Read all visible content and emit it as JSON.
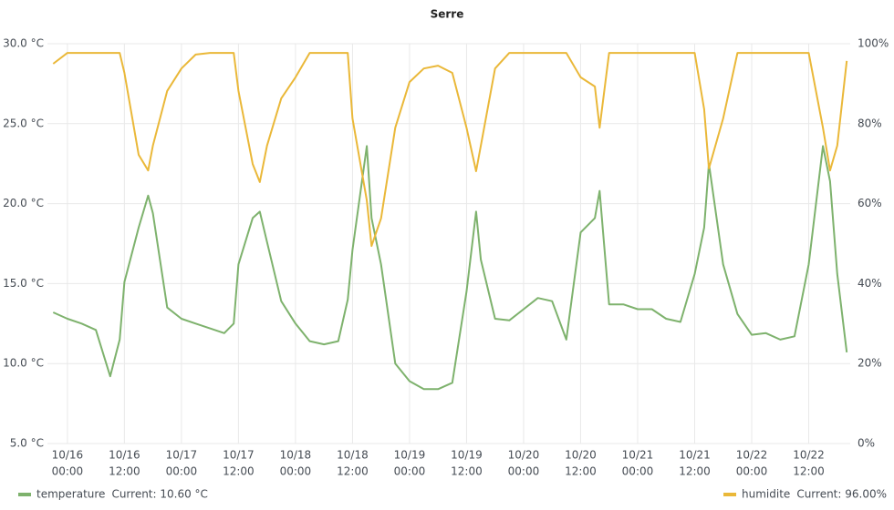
{
  "chart_data": {
    "type": "line",
    "title": "Serre",
    "x": [
      "10/15 21:00",
      "10/16 00:00",
      "10/16 03:00",
      "10/16 06:00",
      "10/16 09:00",
      "10/16 11:00",
      "10/16 12:00",
      "10/16 15:00",
      "10/16 17:00",
      "10/16 18:00",
      "10/16 21:00",
      "10/17 00:00",
      "10/17 03:00",
      "10/17 06:00",
      "10/17 09:00",
      "10/17 11:00",
      "10/17 12:00",
      "10/17 15:00",
      "10/17 16:30",
      "10/17 18:00",
      "10/17 21:00",
      "10/18 00:00",
      "10/18 03:00",
      "10/18 06:00",
      "10/18 09:00",
      "10/18 11:00",
      "10/18 12:00",
      "10/18 15:00",
      "10/18 16:00",
      "10/18 18:00",
      "10/18 21:00",
      "10/19 00:00",
      "10/19 03:00",
      "10/19 06:00",
      "10/19 09:00",
      "10/19 12:00",
      "10/19 14:00",
      "10/19 15:00",
      "10/19 18:00",
      "10/19 21:00",
      "10/20 00:00",
      "10/20 03:00",
      "10/20 06:00",
      "10/20 09:00",
      "10/20 12:00",
      "10/20 15:00",
      "10/20 16:00",
      "10/20 18:00",
      "10/20 21:00",
      "10/21 00:00",
      "10/21 03:00",
      "10/21 06:00",
      "10/21 09:00",
      "10/21 12:00",
      "10/21 14:00",
      "10/21 15:00",
      "10/21 18:00",
      "10/21 21:00",
      "10/22 00:00",
      "10/22 03:00",
      "10/22 06:00",
      "10/22 09:00",
      "10/22 12:00",
      "10/22 15:00",
      "10/22 16:30",
      "10/22 18:00",
      "10/22 20:00"
    ],
    "series": [
      {
        "name": "temperature",
        "legend_label": "Current: 10.60 °C",
        "color": "#7eb26d",
        "axis": "y",
        "values": [
          13.2,
          12.8,
          12.5,
          12.1,
          9.2,
          11.5,
          15.1,
          18.5,
          20.5,
          19.4,
          13.5,
          12.8,
          12.5,
          12.2,
          11.9,
          12.5,
          16.2,
          19.1,
          19.5,
          17.6,
          13.9,
          12.5,
          11.4,
          11.2,
          11.4,
          14.0,
          17.1,
          23.6,
          19.1,
          16.2,
          10.0,
          8.9,
          8.4,
          8.4,
          8.8,
          14.5,
          19.5,
          16.5,
          12.8,
          12.7,
          13.4,
          14.1,
          13.9,
          11.5,
          18.2,
          19.1,
          20.8,
          13.7,
          13.7,
          13.4,
          13.4,
          12.8,
          12.6,
          15.6,
          18.5,
          22.5,
          16.2,
          13.1,
          11.8,
          11.9,
          11.5,
          11.7,
          16.2,
          23.6,
          21.4,
          15.6,
          10.7
        ]
      },
      {
        "name": "humidite",
        "legend_label": "Current: 96.00%",
        "color": "#eab839",
        "axis": "y2",
        "values": [
          95,
          97.7,
          97.7,
          97.7,
          97.7,
          97.7,
          92.7,
          72.2,
          68.3,
          74.5,
          88.2,
          93.8,
          97.3,
          97.7,
          97.7,
          97.7,
          88.2,
          69.9,
          65.4,
          74.5,
          86.3,
          91.6,
          97.7,
          97.7,
          97.7,
          97.7,
          81.3,
          60.8,
          49.4,
          56.3,
          79.0,
          90.4,
          93.8,
          94.5,
          92.7,
          79.0,
          68.1,
          74.5,
          93.8,
          97.7,
          97.7,
          97.7,
          97.7,
          97.7,
          91.6,
          89.3,
          79.0,
          97.7,
          97.7,
          97.7,
          97.7,
          97.7,
          97.7,
          97.7,
          83.6,
          68.8,
          81.3,
          97.7,
          97.7,
          97.7,
          97.7,
          97.7,
          97.7,
          79.0,
          68.3,
          74.5,
          95.7
        ]
      }
    ],
    "xlim": [
      "10/15 19:48",
      "10/22 20:44"
    ],
    "xticks": [
      {
        "value": "10/16 00:00",
        "label": [
          "10/16",
          "00:00"
        ]
      },
      {
        "value": "10/16 12:00",
        "label": [
          "10/16",
          "12:00"
        ]
      },
      {
        "value": "10/17 00:00",
        "label": [
          "10/17",
          "00:00"
        ]
      },
      {
        "value": "10/17 12:00",
        "label": [
          "10/17",
          "12:00"
        ]
      },
      {
        "value": "10/18 00:00",
        "label": [
          "10/18",
          "00:00"
        ]
      },
      {
        "value": "10/18 12:00",
        "label": [
          "10/18",
          "12:00"
        ]
      },
      {
        "value": "10/19 00:00",
        "label": [
          "10/19",
          "00:00"
        ]
      },
      {
        "value": "10/19 12:00",
        "label": [
          "10/19",
          "12:00"
        ]
      },
      {
        "value": "10/20 00:00",
        "label": [
          "10/20",
          "00:00"
        ]
      },
      {
        "value": "10/20 12:00",
        "label": [
          "10/20",
          "12:00"
        ]
      },
      {
        "value": "10/21 00:00",
        "label": [
          "10/21",
          "00:00"
        ]
      },
      {
        "value": "10/21 12:00",
        "label": [
          "10/21",
          "12:00"
        ]
      },
      {
        "value": "10/22 00:00",
        "label": [
          "10/22",
          "00:00"
        ]
      },
      {
        "value": "10/22 12:00",
        "label": [
          "10/22",
          "12:00"
        ]
      }
    ],
    "ylim": [
      5,
      30
    ],
    "yticks": [
      {
        "value": 5,
        "label": "5.0 °C"
      },
      {
        "value": 10,
        "label": "10.0 °C"
      },
      {
        "value": 15,
        "label": "15.0 °C"
      },
      {
        "value": 20,
        "label": "20.0 °C"
      },
      {
        "value": 25,
        "label": "25.0 °C"
      },
      {
        "value": 30,
        "label": "30.0 °C"
      }
    ],
    "y2lim": [
      0,
      100
    ],
    "y2ticks": [
      {
        "value": 0,
        "label": "0%"
      },
      {
        "value": 20,
        "label": "20%"
      },
      {
        "value": 40,
        "label": "40%"
      },
      {
        "value": 60,
        "label": "60%"
      },
      {
        "value": 80,
        "label": "80%"
      },
      {
        "value": 100,
        "label": "100%"
      }
    ],
    "grid": true
  }
}
